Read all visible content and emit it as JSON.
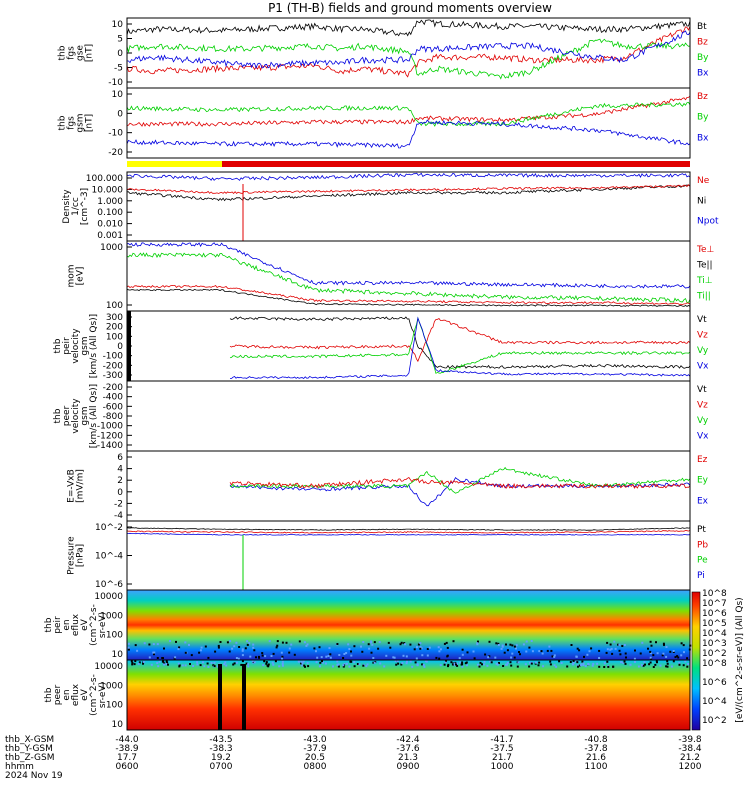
{
  "chart_data": {
    "type": "line",
    "title": "P1 (TH-B) fields and ground moments overview",
    "colors": {
      "black": "#000000",
      "red": "#e00000",
      "green": "#00d000",
      "blue": "#0000e0",
      "yellow": "#ffff00"
    },
    "panels": [
      {
        "id": "fgs",
        "ylabel": [
          "thb",
          "fgs",
          "gse",
          "[nT]"
        ],
        "yticks": [
          "10",
          "5",
          "0",
          "-5",
          "-10"
        ],
        "legend": [
          {
            "text": "Bt",
            "color": "black"
          },
          {
            "text": "Bz",
            "color": "red"
          },
          {
            "text": "By",
            "color": "green"
          },
          {
            "text": "Bx",
            "color": "blue"
          }
        ],
        "series": [
          {
            "name": "Bt",
            "color": "black",
            "x": [
              600,
              630,
              700,
              730,
              800,
              830,
              850,
              900,
              910,
              930,
              1000,
              1030,
              1100,
              1130,
              1200
            ],
            "y": [
              8,
              9,
              8.5,
              9,
              10,
              9,
              9,
              7,
              12,
              11,
              10,
              10,
              9,
              9,
              11
            ]
          },
          {
            "name": "Bz",
            "color": "red",
            "x": [
              600,
              630,
              700,
              730,
              800,
              830,
              850,
              900,
              910,
              930,
              1000,
              1030,
              1100,
              1130,
              1200
            ],
            "y": [
              -5,
              -6,
              -5,
              -5,
              -4,
              -6,
              -5,
              -7,
              -3,
              -1,
              -1,
              -2,
              -2,
              -1,
              10
            ]
          },
          {
            "name": "By",
            "color": "green",
            "x": [
              600,
              630,
              700,
              730,
              800,
              830,
              850,
              900,
              910,
              930,
              1000,
              1030,
              1100,
              1130,
              1200
            ],
            "y": [
              2,
              3,
              2,
              2,
              3,
              2,
              3,
              1,
              -7,
              -5,
              -8,
              -6,
              5,
              3,
              3
            ]
          },
          {
            "name": "Bx",
            "color": "blue",
            "x": [
              600,
              630,
              700,
              730,
              800,
              830,
              850,
              900,
              910,
              930,
              1000,
              1030,
              1100,
              1130,
              1200
            ],
            "y": [
              -2,
              -1,
              -3,
              -4,
              -3,
              -3,
              -2,
              -2,
              2,
              2,
              3,
              3,
              -1,
              -2,
              8
            ]
          }
        ]
      },
      {
        "id": "fgs_gsm",
        "ylabel": [
          "thb",
          "fgs",
          "gsm",
          "[nT]"
        ],
        "yticks": [
          "10",
          "0",
          "-10",
          "-20"
        ],
        "legend": [
          {
            "text": "Bz",
            "color": "red"
          },
          {
            "text": "By",
            "color": "green"
          },
          {
            "text": "Bx",
            "color": "blue"
          }
        ],
        "series": [
          {
            "name": "Bz",
            "color": "red",
            "x": [
              600,
              700,
              800,
              900,
              910,
              1000,
              1100,
              1200
            ],
            "y": [
              -5,
              -5,
              -4,
              -4,
              -2,
              -3,
              0,
              8
            ]
          },
          {
            "name": "By",
            "color": "green",
            "x": [
              600,
              700,
              800,
              900,
              910,
              1000,
              1100,
              1200
            ],
            "y": [
              3,
              2,
              3,
              3,
              -5,
              -5,
              4,
              5
            ]
          },
          {
            "name": "Bx",
            "color": "blue",
            "x": [
              600,
              700,
              800,
              900,
              910,
              1000,
              1100,
              1200
            ],
            "y": [
              -14,
              -15,
              -15,
              -16,
              -4,
              -5,
              -8,
              -15
            ]
          }
        ]
      },
      {
        "id": "density",
        "ylabel": [
          "Density",
          "1/cc",
          "[cm^-3]"
        ],
        "yticks": [
          "100.000",
          "10.000",
          "1.000",
          "0.100",
          "0.010",
          "0.001"
        ],
        "legend": [
          {
            "text": "Ne",
            "color": "red"
          },
          {
            "text": "Ni",
            "color": "black"
          },
          {
            "text": "Npot",
            "color": "blue"
          }
        ]
      },
      {
        "id": "temp",
        "ylabel": [
          "mom",
          "[eV]"
        ],
        "yticks": [
          "1000",
          "100"
        ],
        "legend": [
          {
            "text": "Te⊥",
            "color": "red"
          },
          {
            "text": "Te||",
            "color": "black"
          },
          {
            "text": "Ti⊥",
            "color": "green"
          },
          {
            "text": "Ti||",
            "color": "green"
          }
        ]
      },
      {
        "id": "peir_vel",
        "ylabel": [
          "thb",
          "peir",
          "velocity",
          "gsm",
          "[km/s (All Qs)]"
        ],
        "yticks": [
          "300",
          "200",
          "100",
          "0",
          "-100",
          "-200",
          "-300"
        ],
        "legend": [
          {
            "text": "Vt",
            "color": "black"
          },
          {
            "text": "Vz",
            "color": "red"
          },
          {
            "text": "Vy",
            "color": "green"
          },
          {
            "text": "Vx",
            "color": "blue"
          }
        ]
      },
      {
        "id": "peer_vel",
        "ylabel": [
          "thb",
          "peer",
          "velocity",
          "gsm",
          "[km/s (All Qs)]"
        ],
        "yticks": [
          "-200",
          "-400",
          "-600",
          "-800",
          "-1000",
          "-1200",
          "-1400"
        ],
        "legend": [
          {
            "text": "Vt",
            "color": "black"
          },
          {
            "text": "Vz",
            "color": "red"
          },
          {
            "text": "Vy",
            "color": "green"
          },
          {
            "text": "Vx",
            "color": "blue"
          }
        ]
      },
      {
        "id": "efield",
        "ylabel": [
          "E=-VxB",
          "[mV/m]"
        ],
        "yticks": [
          "6",
          "4",
          "2",
          "0",
          "-2",
          "-4"
        ],
        "legend": [
          {
            "text": "Ez",
            "color": "red"
          },
          {
            "text": "Ey",
            "color": "green"
          },
          {
            "text": "Ex",
            "color": "blue"
          }
        ]
      },
      {
        "id": "pressure",
        "ylabel": [
          "Pressure",
          "[nPa]"
        ],
        "yticks": [
          "10^-2",
          "10^-4",
          "10^-6"
        ],
        "legend": [
          {
            "text": "Pt",
            "color": "black"
          },
          {
            "text": "Pb",
            "color": "red"
          },
          {
            "text": "Pe",
            "color": "green"
          },
          {
            "text": "Pi",
            "color": "blue"
          }
        ]
      },
      {
        "id": "peir_en",
        "ylabel": [
          "thb",
          "peir",
          "en",
          "eflux",
          "eV",
          "(cm^2-s-",
          "sr-eV)"
        ],
        "yticks": [
          "10000",
          "1000",
          "100",
          "10"
        ]
      },
      {
        "id": "peer_en",
        "ylabel": [
          "thb",
          "peer",
          "en",
          "eflux",
          "eV",
          "(cm^2-s-",
          "sr-eV)"
        ],
        "yticks": [
          "10000",
          "1000",
          "100",
          "10"
        ]
      }
    ],
    "colorbar": {
      "label": "[eV/(cm^2-s-sr-eV)] (All Qs)",
      "ticks_top": [
        "10^8",
        "10^7",
        "10^6",
        "10^5",
        "10^4",
        "10^3",
        "10^2"
      ],
      "ticks_bottom": [
        "10^8",
        "10^6",
        "10^4",
        "10^2"
      ]
    },
    "xaxis": {
      "rows": [
        {
          "name": "thb_X-GSM",
          "values": [
            "-44.0",
            "-43.5",
            "-43.0",
            "-42.4",
            "-41.7",
            "-40.8",
            "-39.8"
          ]
        },
        {
          "name": "thb_Y-GSM",
          "values": [
            "-38.9",
            "-38.3",
            "-37.9",
            "-37.6",
            "-37.5",
            "-37.8",
            "-38.4"
          ]
        },
        {
          "name": "thb_Z-GSM",
          "values": [
            "17.7",
            "19.2",
            "20.5",
            "21.3",
            "21.7",
            "21.6",
            "21.2"
          ]
        },
        {
          "name": "hhmm",
          "values": [
            "0600",
            "0700",
            "0800",
            "0900",
            "1000",
            "1100",
            "1200"
          ]
        }
      ],
      "date": "2024 Nov 19"
    }
  }
}
